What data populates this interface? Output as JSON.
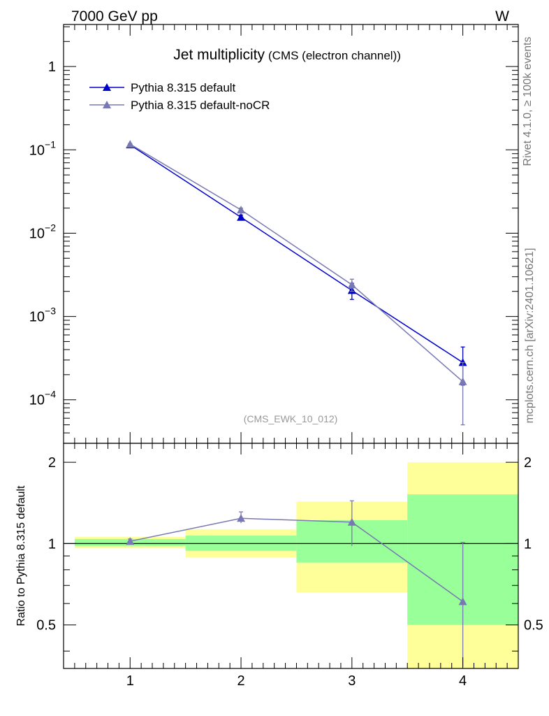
{
  "header": {
    "left": "7000 GeV pp",
    "right": "W"
  },
  "side": {
    "rivet": "Rivet 4.1.0, ≥ 100k events",
    "mcplots": "mcplots.cern.ch [arXiv:2401.10621]"
  },
  "colors": {
    "default": "#0000cc",
    "nocr": "#7878b4",
    "band_inner": "#99ff99",
    "band_outer": "#ffff99"
  },
  "chart_data": [
    {
      "type": "line",
      "title": "Jet multiplicity",
      "subtitle": "(CMS (electron channel))",
      "watermark": "(CMS_EWK_10_012)",
      "yscale": "log",
      "xlim": [
        0.4,
        4.5
      ],
      "ylim": [
        3e-05,
        3.2
      ],
      "y_ticks": [
        {
          "value": 1,
          "label": "1",
          "exp": ""
        },
        {
          "value": 0.1,
          "label": "10",
          "exp": "−1"
        },
        {
          "value": 0.01,
          "label": "10",
          "exp": "−2"
        },
        {
          "value": 0.001,
          "label": "10",
          "exp": "−3"
        },
        {
          "value": 0.0001,
          "label": "10",
          "exp": "−4"
        }
      ],
      "legend_position": "top-left",
      "series": [
        {
          "name": "Pythia 8.315 default",
          "color_key": "default",
          "marker": "triangle",
          "x": [
            1,
            2,
            3,
            4
          ],
          "y": [
            0.115,
            0.0155,
            0.00205,
            0.00028
          ],
          "err_lo": [
            0.002,
            0.001,
            0.00045,
            0.00013
          ],
          "err_hi": [
            0.002,
            0.001,
            0.00045,
            0.00015
          ]
        },
        {
          "name": "Pythia 8.315 default-noCR",
          "color_key": "nocr",
          "marker": "triangle",
          "x": [
            1,
            2,
            3,
            4
          ],
          "y": [
            0.117,
            0.019,
            0.0024,
            0.000165
          ],
          "err_lo": [
            0.002,
            0.001,
            0.0004,
            0.000115
          ],
          "err_hi": [
            0.002,
            0.001,
            0.0004,
            0.000115
          ]
        }
      ]
    },
    {
      "type": "line",
      "ylabel": "Ratio to Pythia 8.315 default",
      "yscale": "log",
      "xlim": [
        0.4,
        4.5
      ],
      "ylim": [
        0.345,
        2.35
      ],
      "y_ticks": [
        {
          "value": 0.5,
          "label": "0.5"
        },
        {
          "value": 1,
          "label": "1"
        },
        {
          "value": 2,
          "label": "2"
        }
      ],
      "x_ticks": [
        {
          "value": 1,
          "label": "1"
        },
        {
          "value": 2,
          "label": "2"
        },
        {
          "value": 3,
          "label": "3"
        },
        {
          "value": 4,
          "label": "4"
        }
      ],
      "bands": [
        {
          "x_lo": 0.5,
          "x_hi": 1.5,
          "inner": [
            0.98,
            1.04
          ],
          "outer": [
            0.96,
            1.06
          ]
        },
        {
          "x_lo": 1.5,
          "x_hi": 2.5,
          "inner": [
            0.94,
            1.07
          ],
          "outer": [
            0.89,
            1.13
          ]
        },
        {
          "x_lo": 2.5,
          "x_hi": 3.5,
          "inner": [
            0.85,
            1.22
          ],
          "outer": [
            0.66,
            1.43
          ]
        },
        {
          "x_lo": 3.5,
          "x_hi": 4.5,
          "inner": [
            0.5,
            1.52
          ],
          "outer": [
            0.33,
            2.0
          ]
        }
      ],
      "series": [
        {
          "name": "Pythia 8.315 default-noCR",
          "color_key": "nocr",
          "x": [
            1,
            2,
            3,
            4
          ],
          "y": [
            1.02,
            1.24,
            1.2,
            0.61
          ],
          "err_lo": [
            0.02,
            0.05,
            0.22,
            0.26
          ],
          "err_hi": [
            0.02,
            0.07,
            0.24,
            0.4
          ]
        }
      ]
    }
  ]
}
